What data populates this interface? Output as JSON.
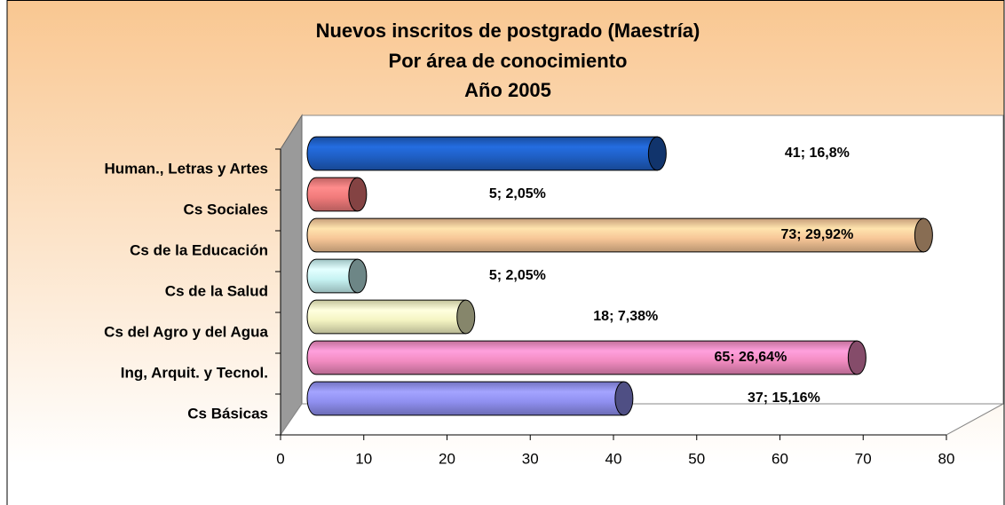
{
  "chart_data": {
    "type": "bar",
    "orientation": "horizontal",
    "style": "3d-cylinder",
    "title": "Nuevos inscritos de postgrado (Maestría)",
    "subtitle": [
      "Por área de conocimiento",
      "Año 2005"
    ],
    "categories": [
      "Human., Letras y Artes",
      "Cs Sociales",
      "Cs de la Educación",
      "Cs de la Salud",
      "Cs del Agro y del Agua",
      "Ing, Arquit. y Tecnol.",
      "Cs Básicas"
    ],
    "values": [
      41,
      5,
      73,
      5,
      18,
      65,
      37
    ],
    "value_labels": [
      "41; 16,8%",
      "5; 2,05%",
      "73; 29,92%",
      "5; 2,05%",
      "18;  7,38%",
      "65; 26,64%",
      "37; 15,16%"
    ],
    "colors": [
      "#1f5fc4",
      "#f07a7a",
      "#f7c697",
      "#c6f3f3",
      "#f4f4c2",
      "#f28bc0",
      "#8f8ff0"
    ],
    "xlim": [
      0,
      80
    ],
    "xticks": [
      0,
      10,
      20,
      30,
      40,
      50,
      60,
      70,
      80
    ]
  }
}
